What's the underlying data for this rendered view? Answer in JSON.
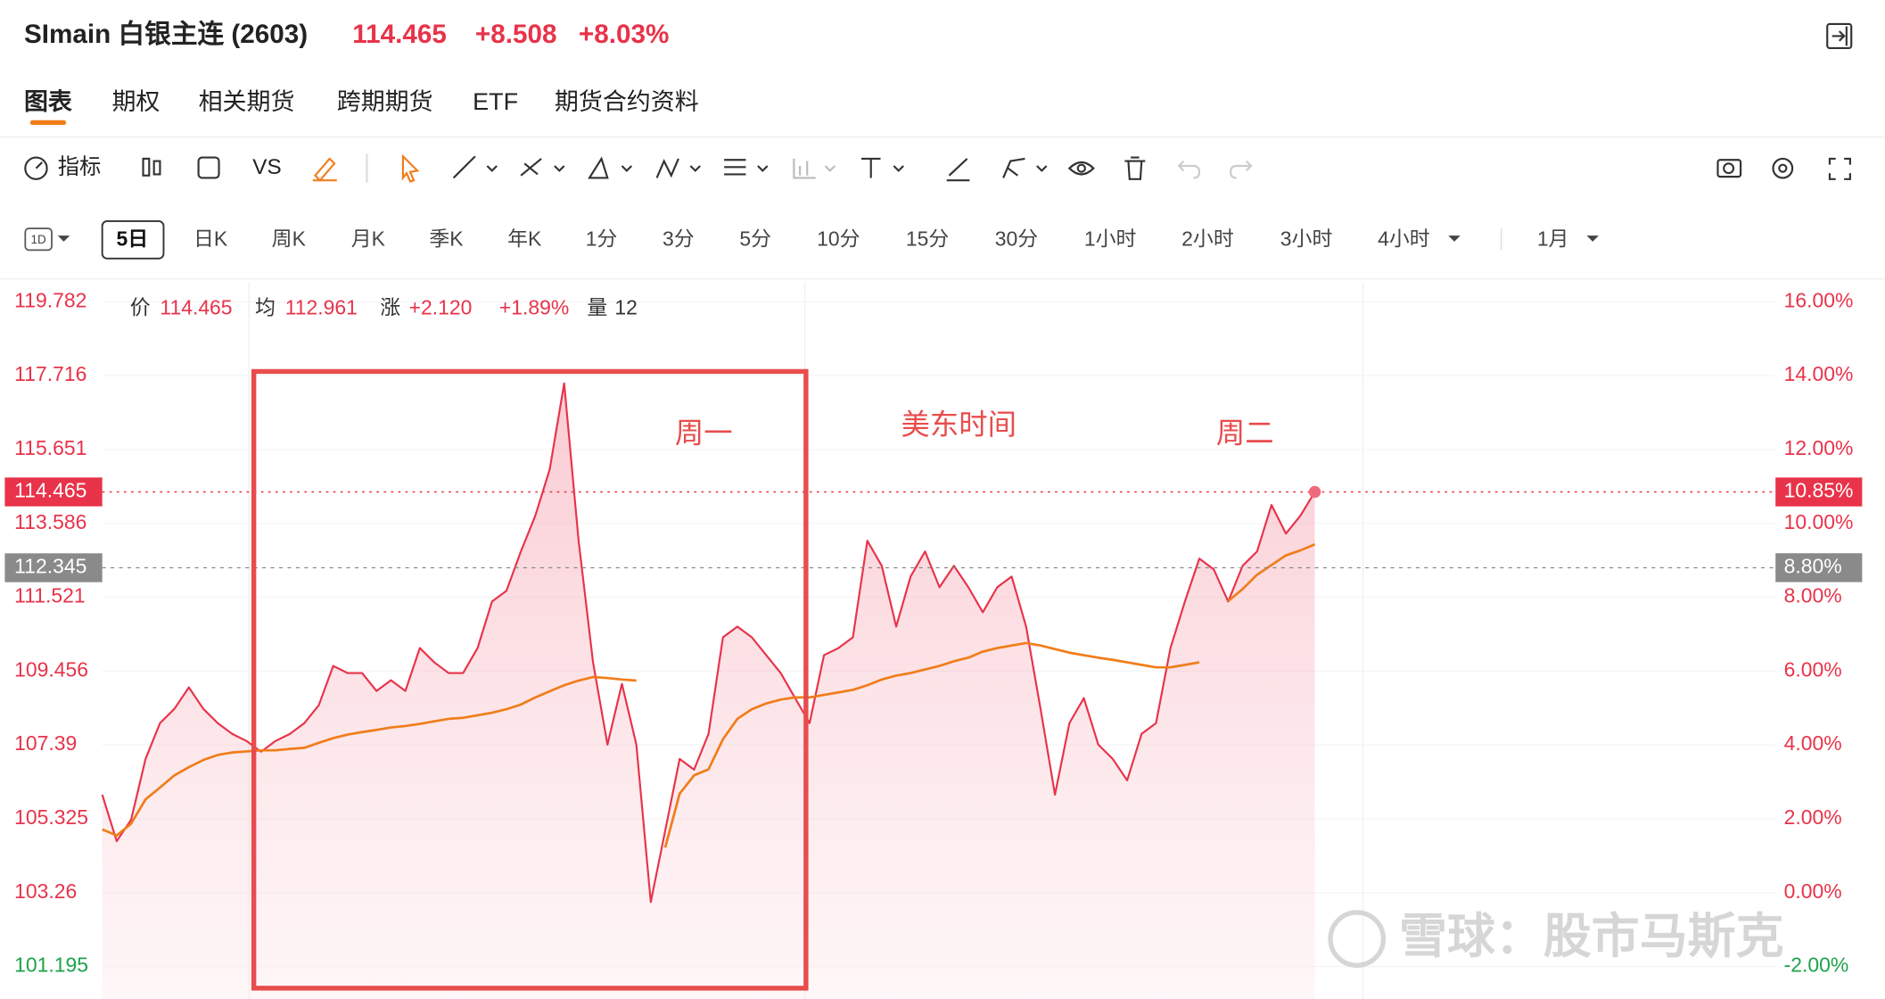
{
  "header": {
    "title": "SImain 白银主连 (2603)",
    "change": "+8.508",
    "change_pct": "+8.03%"
  },
  "tabs": [
    "图表",
    "期权",
    "相关期货",
    "跨期期货",
    "ETF",
    "期货合约资料"
  ],
  "toolbar": {
    "indicator": "指标",
    "compare": "VS"
  },
  "periods": [
    "1D",
    "5日",
    "日K",
    "周K",
    "月K",
    "季K",
    "年K",
    "1分",
    "3分",
    "5分",
    "10分",
    "15分",
    "30分",
    "1小时",
    "2小时",
    "3小时",
    "4小时",
    "1月"
  ],
  "info": {
    "avg": "112.961",
    "change_label": "涨",
    "change": "+2.120",
    "change_pct": "+1.89%",
    "volume_label": "量",
    "volume": "12"
  },
  "watermark": "雪球：股市马斯克",
  "chart_data": {
    "type": "line",
    "annotations": [
      "周一",
      "美东时间",
      "周二"
    ],
    "series": [
      {
        "name": "价",
        "color": "#e8334a",
        "values": [
          106.0,
          104.7,
          105.3,
          107.0,
          108.0,
          108.4,
          109.0,
          108.4,
          108.0,
          107.7,
          107.5,
          107.2,
          107.5,
          107.7,
          108.0,
          108.5,
          109.6,
          109.4,
          109.4,
          108.9,
          109.2,
          108.9,
          110.1,
          109.7,
          109.4,
          109.4,
          110.1,
          111.4,
          111.7,
          112.8,
          113.8,
          115.1,
          117.5,
          113.1,
          109.7,
          107.4,
          109.1,
          107.4,
          103.0,
          105.0,
          107.0,
          106.7,
          107.7,
          110.4,
          110.7,
          110.4,
          109.9,
          109.4,
          108.7,
          108.0,
          109.9,
          110.1,
          110.4,
          113.1,
          112.4,
          110.7,
          112.1,
          112.8,
          111.8,
          112.4,
          111.8,
          111.1,
          111.8,
          112.1,
          110.7,
          108.4,
          106.0,
          108.0,
          108.7,
          107.4,
          107.0,
          106.4,
          107.7,
          108.0,
          110.1,
          111.4,
          112.6,
          112.3,
          111.4,
          112.4,
          112.8,
          114.1,
          113.3,
          113.8,
          114.465
        ]
      },
      {
        "name": "均",
        "color": "#f07d1a",
        "values": [
          105.03,
          104.86,
          105.19,
          105.87,
          106.2,
          106.54,
          106.77,
          106.97,
          107.11,
          107.18,
          107.21,
          107.24,
          107.24,
          107.28,
          107.31,
          107.45,
          107.58,
          107.68,
          107.75,
          107.81,
          107.88,
          107.92,
          107.98,
          108.05,
          108.12,
          108.15,
          108.22,
          108.29,
          108.39,
          108.52,
          108.72,
          108.89,
          109.06,
          109.19,
          109.29,
          109.26,
          109.22,
          109.19,
          null,
          104.52,
          106.03,
          106.54,
          106.71,
          107.55,
          108.12,
          108.39,
          108.55,
          108.66,
          108.72,
          108.72,
          108.79,
          108.86,
          108.93,
          109.06,
          109.22,
          109.33,
          109.4,
          109.5,
          109.6,
          109.73,
          109.83,
          110.0,
          110.1,
          110.17,
          110.24,
          110.17,
          110.07,
          109.97,
          109.9,
          109.83,
          109.77,
          109.7,
          109.63,
          109.56,
          109.56,
          109.63,
          109.7,
          null,
          111.41,
          111.75,
          112.15,
          112.42,
          112.69,
          112.83,
          113.0
        ]
      }
    ],
    "ylim": [
      101.195,
      119.782
    ],
    "yticks": [
      101.195,
      103.26,
      105.325,
      107.39,
      109.456,
      111.521,
      113.586,
      115.651,
      117.716,
      119.782
    ],
    "y2lim": [
      -2,
      16
    ],
    "y2ticks": [
      {
        "value": -2,
        "label": "-2.00%"
      },
      {
        "value": 0,
        "label": "0.00%"
      },
      {
        "value": 2,
        "label": "2.00%"
      },
      {
        "value": 4,
        "label": "4.00%"
      },
      {
        "value": 6,
        "label": "6.00%"
      },
      {
        "value": 8,
        "label": "8.00%"
      },
      {
        "value": 10,
        "label": "10.00%"
      },
      {
        "value": 12,
        "label": "12.00%"
      },
      {
        "value": 14,
        "label": "14.00%"
      },
      {
        "value": 16,
        "label": "16.00%"
      }
    ],
    "price_tag_pct": {
      "value": 10.85,
      "label": "10.85%"
    },
    "ref_line": {
      "value": 112.345,
      "label": "112.345"
    },
    "ref_line_pct": {
      "value": 8.8,
      "label": "8.80%"
    },
    "grid": true
  }
}
